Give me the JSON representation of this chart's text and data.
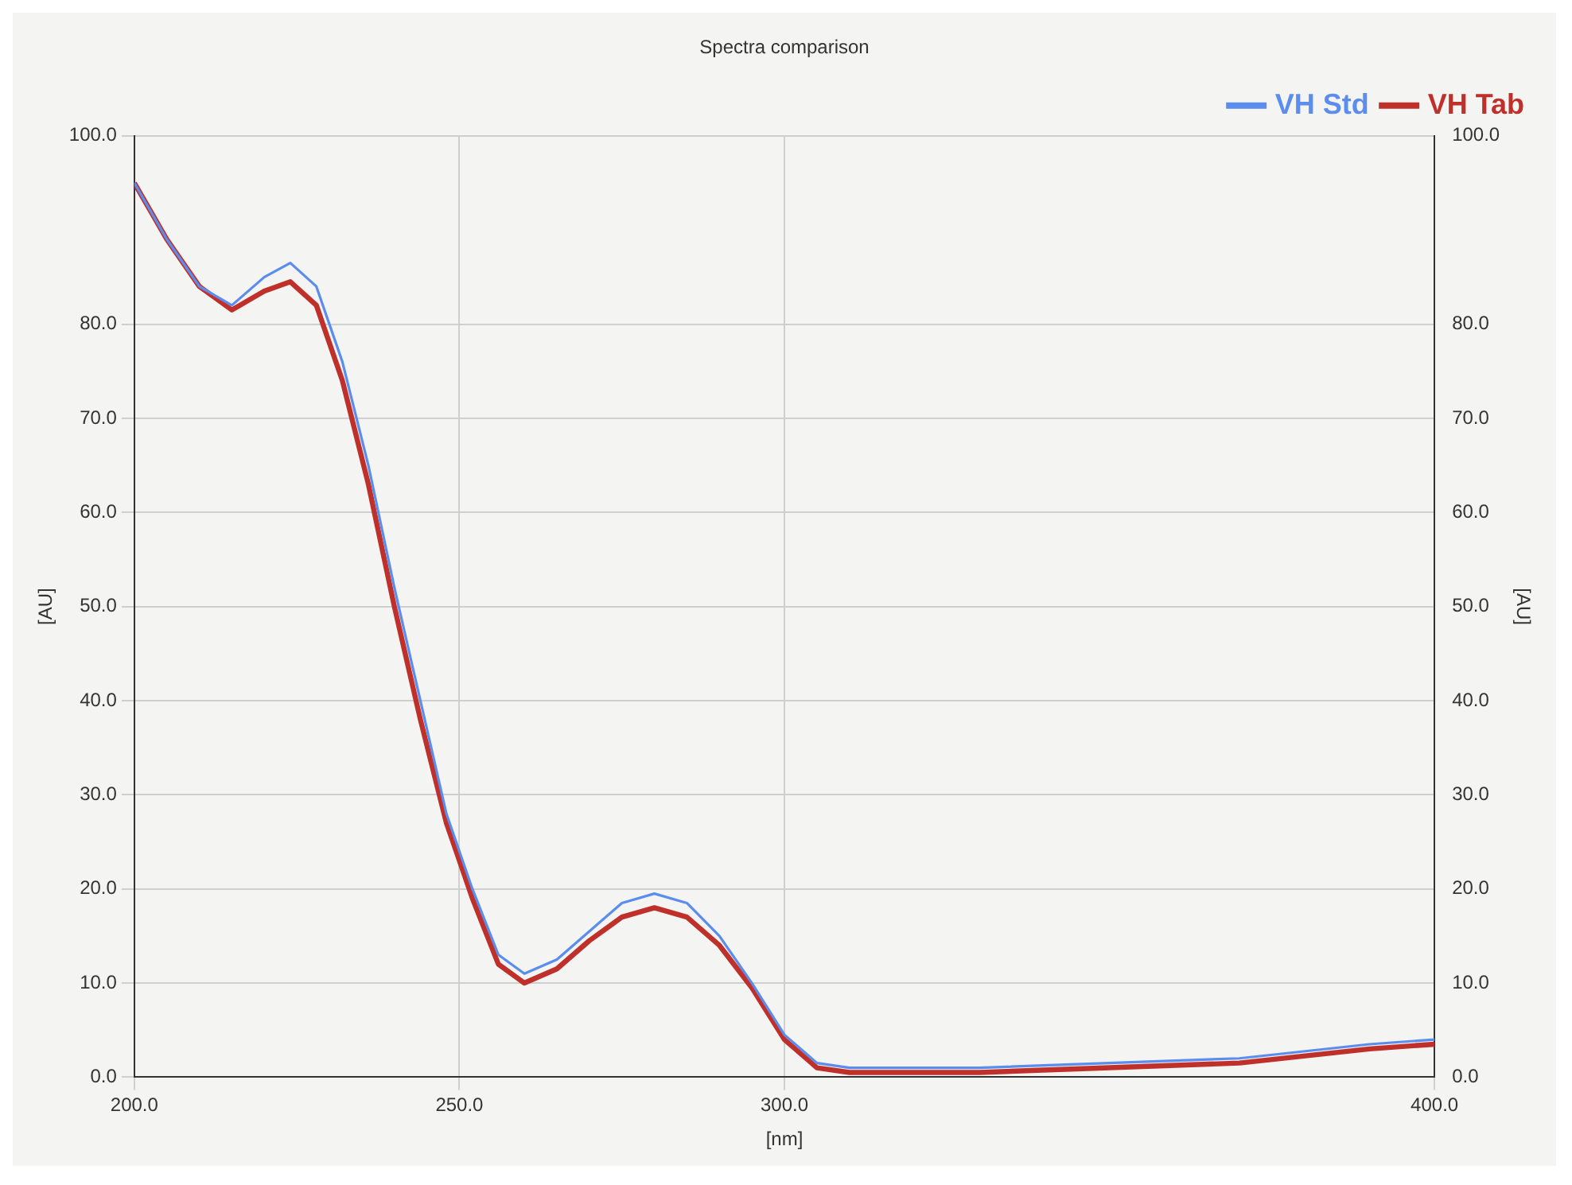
{
  "chart_data": {
    "type": "line",
    "title": "Spectra comparison",
    "xlabel": "[nm]",
    "ylabel": "[AU]",
    "y2label": "[AU]",
    "x": [
      200,
      205,
      210,
      215,
      220,
      224,
      228,
      232,
      236,
      240,
      244,
      248,
      252,
      256,
      260,
      265,
      270,
      275,
      280,
      285,
      290,
      295,
      300,
      305,
      310,
      330,
      350,
      370,
      390,
      400
    ],
    "series": [
      {
        "name": "VH Std",
        "color": "#5b8def",
        "values": [
          95,
          89,
          84,
          82,
          85,
          86.5,
          84,
          76,
          65,
          52,
          40,
          28,
          20,
          13,
          11,
          12.5,
          15.5,
          18.5,
          19.5,
          18.5,
          15,
          10,
          4.5,
          1.5,
          1,
          1,
          1.5,
          2,
          3.5,
          4
        ]
      },
      {
        "name": "VH Tab",
        "color": "#c0302b",
        "values": [
          95,
          89,
          84,
          81.5,
          83.5,
          84.5,
          82,
          74,
          63,
          50,
          38,
          27,
          19,
          12,
          10,
          11.5,
          14.5,
          17,
          18,
          17,
          14,
          9.5,
          4,
          1,
          0.5,
          0.5,
          1,
          1.5,
          3,
          3.5
        ]
      }
    ],
    "xlim": [
      200,
      400
    ],
    "xticks": [
      {
        "value": 200,
        "label": "200.0"
      },
      {
        "value": 250,
        "label": "250.0"
      },
      {
        "value": 300,
        "label": "300.0"
      },
      {
        "value": 400,
        "label": "400.0"
      }
    ],
    "ylim": [
      0,
      100
    ],
    "yticks": [
      {
        "value": 0,
        "label": "0.0"
      },
      {
        "value": 10,
        "label": "10.0"
      },
      {
        "value": 20,
        "label": "20.0"
      },
      {
        "value": 30,
        "label": "30.0"
      },
      {
        "value": 40,
        "label": "40.0"
      },
      {
        "value": 50,
        "label": "50.0"
      },
      {
        "value": 60,
        "label": "60.0"
      },
      {
        "value": 70,
        "label": "70.0"
      },
      {
        "value": 80,
        "label": "80.0"
      },
      {
        "value": 100,
        "label": "100.0"
      }
    ],
    "y2lim": [
      0,
      100
    ],
    "y2ticks": [
      {
        "value": 0,
        "label": "0.0"
      },
      {
        "value": 10,
        "label": "10.0"
      },
      {
        "value": 20,
        "label": "20.0"
      },
      {
        "value": 30,
        "label": "30.0"
      },
      {
        "value": 40,
        "label": "40.0"
      },
      {
        "value": 50,
        "label": "50.0"
      },
      {
        "value": 60,
        "label": "60.0"
      },
      {
        "value": 70,
        "label": "70.0"
      },
      {
        "value": 80,
        "label": "80.0"
      },
      {
        "value": 100,
        "label": "100.0"
      }
    ],
    "grid": true,
    "legend": "top right",
    "marker": "none",
    "line_style": "solid"
  }
}
